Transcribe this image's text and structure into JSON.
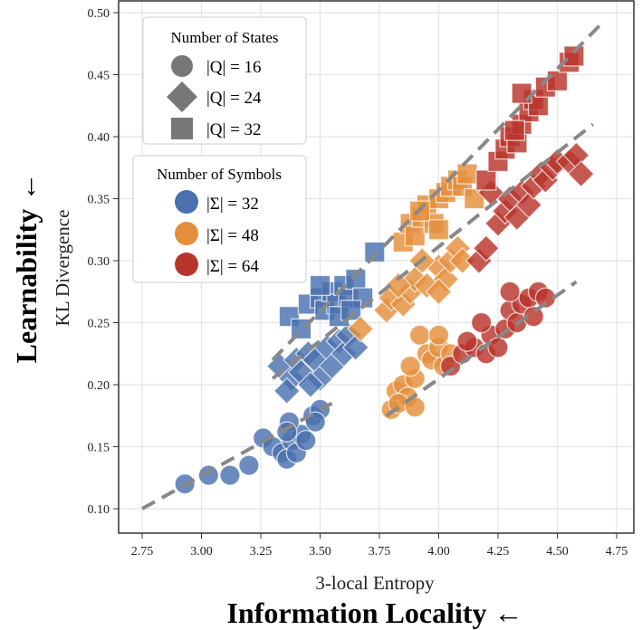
{
  "chart_data": {
    "type": "scatter",
    "xlabel": "3-local Entropy",
    "ylabel": "KL Divergence",
    "outer_xlabel": "Information Locality ←",
    "outer_ylabel": "Learnability ←",
    "xlim": [
      2.62,
      4.85
    ],
    "ylim": [
      0.08,
      0.5
    ],
    "xticks": [
      "2.75",
      "3.00",
      "3.25",
      "3.50",
      "3.75",
      "4.00",
      "4.25",
      "4.50",
      "4.75"
    ],
    "yticks": [
      "0.10",
      "0.15",
      "0.20",
      "0.25",
      "0.30",
      "0.35",
      "0.40",
      "0.45",
      "0.50"
    ],
    "grid": true,
    "legend": {
      "placement": "top-left",
      "states_title": "Number of States",
      "states": [
        {
          "label": "|Q| = 16",
          "marker": "circle"
        },
        {
          "label": "|Q| = 24",
          "marker": "diamond"
        },
        {
          "label": "|Q| = 32",
          "marker": "square"
        }
      ],
      "symbols_title": "Number of Symbols",
      "symbols": [
        {
          "label": "|Σ| = 32",
          "color": "#4a70ae"
        },
        {
          "label": "|Σ| = 48",
          "color": "#e58f3c"
        },
        {
          "label": "|Σ| = 64",
          "color": "#b8352c"
        }
      ]
    },
    "series": [
      {
        "states": 16,
        "symbols": 32,
        "marker": "circle",
        "color": "#4a70ae",
        "points": [
          [
            2.93,
            0.12
          ],
          [
            3.03,
            0.127
          ],
          [
            3.12,
            0.127
          ],
          [
            3.2,
            0.135
          ],
          [
            3.26,
            0.157
          ],
          [
            3.3,
            0.15
          ],
          [
            3.34,
            0.145
          ],
          [
            3.36,
            0.14
          ],
          [
            3.38,
            0.155
          ],
          [
            3.4,
            0.145
          ],
          [
            3.42,
            0.16
          ],
          [
            3.37,
            0.17
          ],
          [
            3.44,
            0.155
          ],
          [
            3.47,
            0.175
          ],
          [
            3.5,
            0.18
          ],
          [
            3.48,
            0.17
          ],
          [
            3.36,
            0.162
          ]
        ]
      },
      {
        "states": 24,
        "symbols": 32,
        "marker": "diamond",
        "color": "#4a70ae",
        "points": [
          [
            3.33,
            0.215
          ],
          [
            3.38,
            0.205
          ],
          [
            3.4,
            0.22
          ],
          [
            3.42,
            0.21
          ],
          [
            3.45,
            0.225
          ],
          [
            3.48,
            0.22
          ],
          [
            3.5,
            0.205
          ],
          [
            3.53,
            0.23
          ],
          [
            3.55,
            0.215
          ],
          [
            3.58,
            0.235
          ],
          [
            3.6,
            0.225
          ],
          [
            3.62,
            0.24
          ],
          [
            3.36,
            0.195
          ],
          [
            3.65,
            0.23
          ],
          [
            3.46,
            0.2
          ]
        ]
      },
      {
        "states": 32,
        "symbols": 32,
        "marker": "square",
        "color": "#4a70ae",
        "points": [
          [
            3.37,
            0.255
          ],
          [
            3.42,
            0.245
          ],
          [
            3.45,
            0.265
          ],
          [
            3.5,
            0.27
          ],
          [
            3.52,
            0.26
          ],
          [
            3.55,
            0.275
          ],
          [
            3.57,
            0.265
          ],
          [
            3.6,
            0.28
          ],
          [
            3.62,
            0.27
          ],
          [
            3.65,
            0.285
          ],
          [
            3.68,
            0.27
          ],
          [
            3.5,
            0.28
          ],
          [
            3.58,
            0.255
          ],
          [
            3.73,
            0.307
          ],
          [
            3.63,
            0.26
          ]
        ]
      },
      {
        "states": 16,
        "symbols": 48,
        "marker": "circle",
        "color": "#e58f3c",
        "points": [
          [
            3.8,
            0.18
          ],
          [
            3.82,
            0.195
          ],
          [
            3.85,
            0.2
          ],
          [
            3.87,
            0.19
          ],
          [
            3.9,
            0.205
          ],
          [
            3.83,
            0.185
          ],
          [
            3.88,
            0.215
          ],
          [
            3.92,
            0.24
          ],
          [
            3.95,
            0.225
          ],
          [
            3.97,
            0.22
          ],
          [
            4.0,
            0.23
          ],
          [
            4.02,
            0.215
          ],
          [
            4.05,
            0.225
          ],
          [
            4.0,
            0.24
          ],
          [
            3.9,
            0.182
          ]
        ]
      },
      {
        "states": 24,
        "symbols": 48,
        "marker": "diamond",
        "color": "#e58f3c",
        "points": [
          [
            3.67,
            0.245
          ],
          [
            3.78,
            0.26
          ],
          [
            3.8,
            0.27
          ],
          [
            3.85,
            0.265
          ],
          [
            3.88,
            0.275
          ],
          [
            3.9,
            0.285
          ],
          [
            3.95,
            0.28
          ],
          [
            4.0,
            0.295
          ],
          [
            4.03,
            0.285
          ],
          [
            4.05,
            0.3
          ],
          [
            4.08,
            0.31
          ],
          [
            4.1,
            0.3
          ],
          [
            3.83,
            0.28
          ],
          [
            4.0,
            0.275
          ],
          [
            3.93,
            0.3
          ]
        ]
      },
      {
        "states": 32,
        "symbols": 48,
        "marker": "square",
        "color": "#e58f3c",
        "points": [
          [
            3.85,
            0.315
          ],
          [
            3.88,
            0.33
          ],
          [
            3.9,
            0.32
          ],
          [
            3.93,
            0.335
          ],
          [
            3.95,
            0.345
          ],
          [
            3.98,
            0.33
          ],
          [
            4.0,
            0.35
          ],
          [
            4.03,
            0.355
          ],
          [
            4.05,
            0.36
          ],
          [
            4.08,
            0.365
          ],
          [
            4.1,
            0.36
          ],
          [
            4.12,
            0.37
          ],
          [
            3.92,
            0.34
          ],
          [
            4.0,
            0.325
          ],
          [
            4.15,
            0.35
          ]
        ]
      },
      {
        "states": 16,
        "symbols": 64,
        "marker": "circle",
        "color": "#b8352c",
        "points": [
          [
            4.05,
            0.215
          ],
          [
            4.1,
            0.225
          ],
          [
            4.15,
            0.23
          ],
          [
            4.2,
            0.225
          ],
          [
            4.22,
            0.24
          ],
          [
            4.25,
            0.23
          ],
          [
            4.28,
            0.245
          ],
          [
            4.3,
            0.26
          ],
          [
            4.33,
            0.25
          ],
          [
            4.35,
            0.265
          ],
          [
            4.38,
            0.27
          ],
          [
            4.4,
            0.255
          ],
          [
            4.42,
            0.275
          ],
          [
            4.45,
            0.27
          ],
          [
            4.3,
            0.275
          ],
          [
            4.18,
            0.25
          ],
          [
            4.12,
            0.235
          ]
        ]
      },
      {
        "states": 24,
        "symbols": 64,
        "marker": "diamond",
        "color": "#b8352c",
        "points": [
          [
            4.17,
            0.3
          ],
          [
            4.2,
            0.31
          ],
          [
            4.25,
            0.33
          ],
          [
            4.28,
            0.34
          ],
          [
            4.3,
            0.35
          ],
          [
            4.33,
            0.335
          ],
          [
            4.35,
            0.355
          ],
          [
            4.38,
            0.345
          ],
          [
            4.4,
            0.36
          ],
          [
            4.43,
            0.37
          ],
          [
            4.45,
            0.365
          ],
          [
            4.48,
            0.375
          ],
          [
            4.5,
            0.38
          ],
          [
            4.55,
            0.38
          ],
          [
            4.58,
            0.385
          ],
          [
            4.22,
            0.355
          ],
          [
            4.6,
            0.37
          ]
        ]
      },
      {
        "states": 32,
        "symbols": 64,
        "marker": "square",
        "color": "#b8352c",
        "points": [
          [
            4.2,
            0.365
          ],
          [
            4.25,
            0.38
          ],
          [
            4.28,
            0.39
          ],
          [
            4.3,
            0.4
          ],
          [
            4.33,
            0.395
          ],
          [
            4.35,
            0.41
          ],
          [
            4.38,
            0.42
          ],
          [
            4.4,
            0.43
          ],
          [
            4.42,
            0.425
          ],
          [
            4.45,
            0.44
          ],
          [
            4.5,
            0.445
          ],
          [
            4.55,
            0.46
          ],
          [
            4.57,
            0.465
          ],
          [
            4.35,
            0.435
          ],
          [
            4.32,
            0.405
          ]
        ]
      }
    ],
    "trend_lines": [
      {
        "group": "|Q| = 16, |Σ| = 32",
        "from": [
          2.75,
          0.1
        ],
        "to": [
          3.55,
          0.185
        ]
      },
      {
        "group": "|Q| = 16, |Σ| = 48/64",
        "from": [
          3.78,
          0.175
        ],
        "to": [
          4.58,
          0.283
        ]
      },
      {
        "group": "|Q| = 24",
        "from": [
          3.3,
          0.205
        ],
        "to": [
          4.65,
          0.41
        ]
      },
      {
        "group": "|Q| = 32",
        "from": [
          3.3,
          0.22
        ],
        "to": [
          4.68,
          0.49
        ]
      }
    ]
  }
}
